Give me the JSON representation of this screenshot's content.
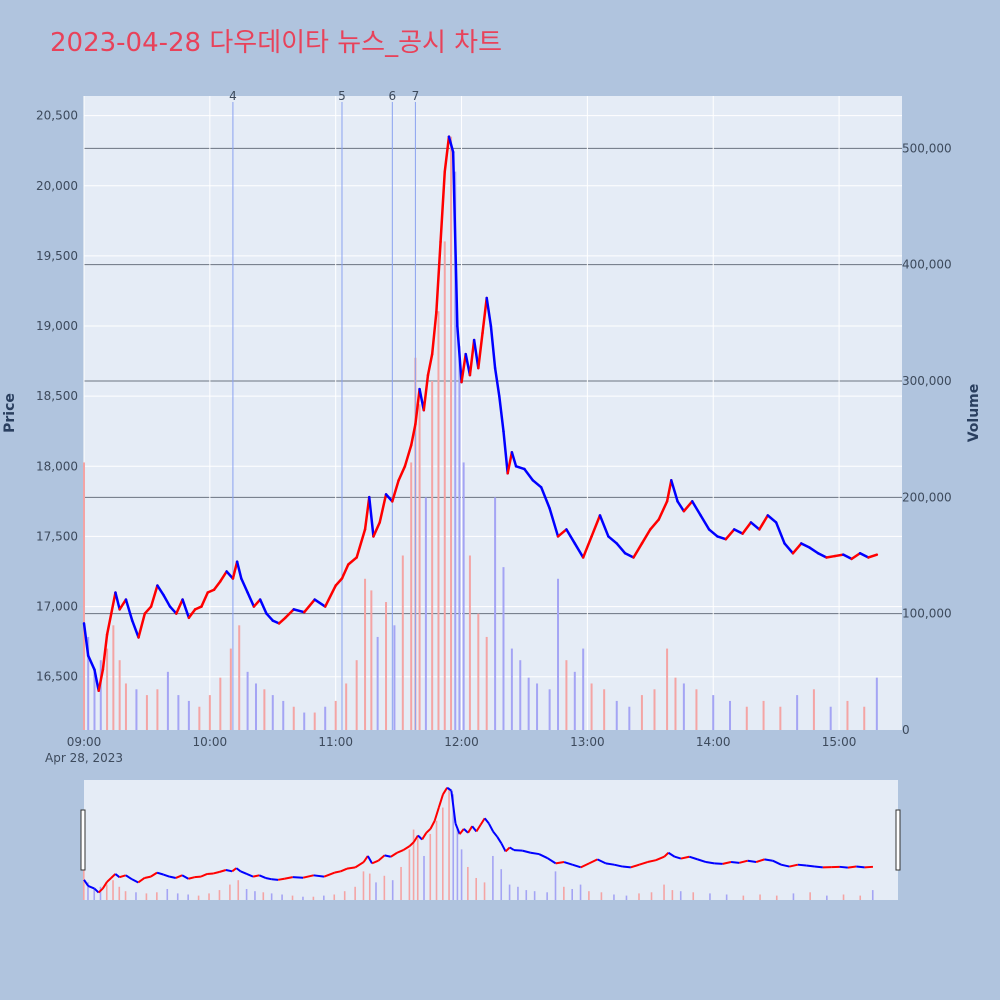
{
  "chart_data": {
    "type": "line",
    "title": "2023-04-28 다우데이타 뉴스_공시 차트",
    "ylabel": "Price",
    "y2label": "Volume",
    "date_label": "Apr 28, 2023",
    "x_ticks": [
      "09:00",
      "10:00",
      "11:00",
      "12:00",
      "13:00",
      "14:00",
      "15:00"
    ],
    "y_ticks": [
      16500,
      17000,
      17500,
      18000,
      18500,
      19000,
      19500,
      20000,
      20500
    ],
    "y_range": [
      16120,
      20640
    ],
    "y2_ticks": [
      0,
      100000,
      200000,
      300000,
      400000,
      500000
    ],
    "y2_range": [
      0,
      545000
    ],
    "x_range": [
      "09:00",
      "15:30"
    ],
    "events": [
      {
        "label": "4",
        "time": "10:11"
      },
      {
        "label": "5",
        "time": "11:03"
      },
      {
        "label": "6",
        "time": "11:27"
      },
      {
        "label": "7",
        "time": "11:38"
      }
    ],
    "colors": {
      "up": "#ff0000",
      "down": "#0000ff",
      "vol_up": "#f4a4a4",
      "vol_down": "#a4a4f4",
      "event_line": "#8aa2f0",
      "grid": "#ffffff",
      "vol_grid": "#6b7380"
    },
    "series": [
      {
        "name": "Price",
        "points": [
          [
            "09:00",
            16880
          ],
          [
            "09:02",
            16650
          ],
          [
            "09:05",
            16550
          ],
          [
            "09:07",
            16400
          ],
          [
            "09:09",
            16550
          ],
          [
            "09:11",
            16800
          ],
          [
            "09:13",
            16950
          ],
          [
            "09:15",
            17100
          ],
          [
            "09:17",
            16980
          ],
          [
            "09:20",
            17050
          ],
          [
            "09:23",
            16900
          ],
          [
            "09:26",
            16780
          ],
          [
            "09:29",
            16950
          ],
          [
            "09:32",
            17000
          ],
          [
            "09:35",
            17150
          ],
          [
            "09:38",
            17080
          ],
          [
            "09:41",
            17000
          ],
          [
            "09:44",
            16950
          ],
          [
            "09:47",
            17050
          ],
          [
            "09:50",
            16920
          ],
          [
            "09:53",
            16980
          ],
          [
            "09:56",
            17000
          ],
          [
            "09:59",
            17100
          ],
          [
            "10:02",
            17120
          ],
          [
            "10:05",
            17180
          ],
          [
            "10:08",
            17250
          ],
          [
            "10:11",
            17200
          ],
          [
            "10:13",
            17320
          ],
          [
            "10:15",
            17200
          ],
          [
            "10:18",
            17100
          ],
          [
            "10:21",
            17000
          ],
          [
            "10:24",
            17050
          ],
          [
            "10:27",
            16950
          ],
          [
            "10:30",
            16900
          ],
          [
            "10:33",
            16880
          ],
          [
            "10:36",
            16920
          ],
          [
            "10:40",
            16980
          ],
          [
            "10:45",
            16960
          ],
          [
            "10:50",
            17050
          ],
          [
            "10:55",
            17000
          ],
          [
            "11:00",
            17150
          ],
          [
            "11:03",
            17200
          ],
          [
            "11:06",
            17300
          ],
          [
            "11:10",
            17350
          ],
          [
            "11:14",
            17550
          ],
          [
            "11:16",
            17780
          ],
          [
            "11:18",
            17500
          ],
          [
            "11:21",
            17600
          ],
          [
            "11:24",
            17800
          ],
          [
            "11:27",
            17750
          ],
          [
            "11:30",
            17900
          ],
          [
            "11:33",
            18000
          ],
          [
            "11:36",
            18150
          ],
          [
            "11:38",
            18300
          ],
          [
            "11:40",
            18550
          ],
          [
            "11:42",
            18400
          ],
          [
            "11:44",
            18650
          ],
          [
            "11:46",
            18800
          ],
          [
            "11:48",
            19100
          ],
          [
            "11:50",
            19600
          ],
          [
            "11:52",
            20100
          ],
          [
            "11:54",
            20350
          ],
          [
            "11:56",
            20240
          ],
          [
            "11:58",
            19000
          ],
          [
            "12:00",
            18600
          ],
          [
            "12:02",
            18800
          ],
          [
            "12:04",
            18650
          ],
          [
            "12:06",
            18900
          ],
          [
            "12:08",
            18700
          ],
          [
            "12:10",
            18950
          ],
          [
            "12:12",
            19200
          ],
          [
            "12:14",
            19000
          ],
          [
            "12:16",
            18700
          ],
          [
            "12:18",
            18500
          ],
          [
            "12:20",
            18250
          ],
          [
            "12:22",
            17950
          ],
          [
            "12:24",
            18100
          ],
          [
            "12:26",
            18000
          ],
          [
            "12:30",
            17980
          ],
          [
            "12:34",
            17900
          ],
          [
            "12:38",
            17850
          ],
          [
            "12:42",
            17700
          ],
          [
            "12:46",
            17500
          ],
          [
            "12:50",
            17550
          ],
          [
            "12:54",
            17450
          ],
          [
            "12:58",
            17350
          ],
          [
            "13:02",
            17500
          ],
          [
            "13:06",
            17650
          ],
          [
            "13:10",
            17500
          ],
          [
            "13:14",
            17450
          ],
          [
            "13:18",
            17380
          ],
          [
            "13:22",
            17350
          ],
          [
            "13:26",
            17450
          ],
          [
            "13:30",
            17550
          ],
          [
            "13:34",
            17620
          ],
          [
            "13:38",
            17750
          ],
          [
            "13:40",
            17900
          ],
          [
            "13:43",
            17750
          ],
          [
            "13:46",
            17680
          ],
          [
            "13:50",
            17750
          ],
          [
            "13:54",
            17650
          ],
          [
            "13:58",
            17550
          ],
          [
            "14:02",
            17500
          ],
          [
            "14:06",
            17480
          ],
          [
            "14:10",
            17550
          ],
          [
            "14:14",
            17520
          ],
          [
            "14:18",
            17600
          ],
          [
            "14:22",
            17550
          ],
          [
            "14:26",
            17650
          ],
          [
            "14:30",
            17600
          ],
          [
            "14:34",
            17450
          ],
          [
            "14:38",
            17380
          ],
          [
            "14:42",
            17450
          ],
          [
            "14:46",
            17420
          ],
          [
            "14:50",
            17380
          ],
          [
            "14:54",
            17350
          ],
          [
            "14:58",
            17360
          ],
          [
            "15:02",
            17370
          ],
          [
            "15:06",
            17340
          ],
          [
            "15:10",
            17380
          ],
          [
            "15:14",
            17350
          ],
          [
            "15:18",
            17370
          ]
        ]
      },
      {
        "name": "Volume",
        "points": [
          [
            "09:00",
            230000
          ],
          [
            "09:02",
            80000
          ],
          [
            "09:05",
            50000
          ],
          [
            "09:08",
            60000
          ],
          [
            "09:11",
            70000
          ],
          [
            "09:14",
            90000
          ],
          [
            "09:17",
            60000
          ],
          [
            "09:20",
            40000
          ],
          [
            "09:25",
            35000
          ],
          [
            "09:30",
            30000
          ],
          [
            "09:35",
            35000
          ],
          [
            "09:40",
            50000
          ],
          [
            "09:45",
            30000
          ],
          [
            "09:50",
            25000
          ],
          [
            "09:55",
            20000
          ],
          [
            "10:00",
            30000
          ],
          [
            "10:05",
            45000
          ],
          [
            "10:10",
            70000
          ],
          [
            "10:14",
            90000
          ],
          [
            "10:18",
            50000
          ],
          [
            "10:22",
            40000
          ],
          [
            "10:26",
            35000
          ],
          [
            "10:30",
            30000
          ],
          [
            "10:35",
            25000
          ],
          [
            "10:40",
            20000
          ],
          [
            "10:45",
            15000
          ],
          [
            "10:50",
            15000
          ],
          [
            "10:55",
            20000
          ],
          [
            "11:00",
            25000
          ],
          [
            "11:05",
            40000
          ],
          [
            "11:10",
            60000
          ],
          [
            "11:14",
            130000
          ],
          [
            "11:17",
            120000
          ],
          [
            "11:20",
            80000
          ],
          [
            "11:24",
            110000
          ],
          [
            "11:28",
            90000
          ],
          [
            "11:32",
            150000
          ],
          [
            "11:36",
            230000
          ],
          [
            "11:38",
            320000
          ],
          [
            "11:40",
            280000
          ],
          [
            "11:43",
            200000
          ],
          [
            "11:46",
            300000
          ],
          [
            "11:49",
            360000
          ],
          [
            "11:52",
            420000
          ],
          [
            "11:55",
            510000
          ],
          [
            "11:57",
            480000
          ],
          [
            "11:59",
            330000
          ],
          [
            "12:01",
            230000
          ],
          [
            "12:04",
            150000
          ],
          [
            "12:08",
            100000
          ],
          [
            "12:12",
            80000
          ],
          [
            "12:16",
            200000
          ],
          [
            "12:20",
            140000
          ],
          [
            "12:24",
            70000
          ],
          [
            "12:28",
            60000
          ],
          [
            "12:32",
            45000
          ],
          [
            "12:36",
            40000
          ],
          [
            "12:42",
            35000
          ],
          [
            "12:46",
            130000
          ],
          [
            "12:50",
            60000
          ],
          [
            "12:54",
            50000
          ],
          [
            "12:58",
            70000
          ],
          [
            "13:02",
            40000
          ],
          [
            "13:08",
            35000
          ],
          [
            "13:14",
            25000
          ],
          [
            "13:20",
            20000
          ],
          [
            "13:26",
            30000
          ],
          [
            "13:32",
            35000
          ],
          [
            "13:38",
            70000
          ],
          [
            "13:42",
            45000
          ],
          [
            "13:46",
            40000
          ],
          [
            "13:52",
            35000
          ],
          [
            "14:00",
            30000
          ],
          [
            "14:08",
            25000
          ],
          [
            "14:16",
            20000
          ],
          [
            "14:24",
            25000
          ],
          [
            "14:32",
            20000
          ],
          [
            "14:40",
            30000
          ],
          [
            "14:48",
            35000
          ],
          [
            "14:56",
            20000
          ],
          [
            "15:04",
            25000
          ],
          [
            "15:12",
            20000
          ],
          [
            "15:18",
            45000
          ]
        ]
      }
    ]
  }
}
